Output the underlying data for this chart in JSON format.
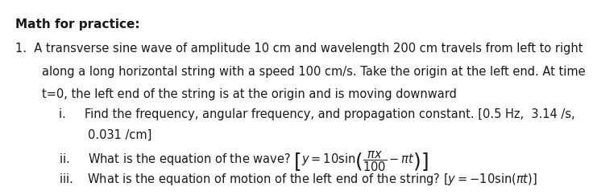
{
  "title": "Math for practice:",
  "background_color": "#ffffff",
  "text_color": "#1a1a1a",
  "fontsize_title": 11,
  "fontsize_body": 10.5,
  "line1": "1.  A transverse sine wave of amplitude 10 cm and wavelength 200 cm travels from left to right",
  "line2": "along a long horizontal string with a speed 100 cm/s. Take the origin at the left end. At time",
  "line3": "t=0, the left end of the string is at the origin and is moving downward",
  "line4i_a": "i.     Find the frequency, angular frequency, and propagation constant. [0.5 Hz,  3.14 /s,",
  "line4i_b": "0.031 /cm]",
  "line4ii_pre": "ii.     What is the equation of the wave?",
  "line4iii_pre": "iii.    What is the equation of motion of the left end of the string?"
}
